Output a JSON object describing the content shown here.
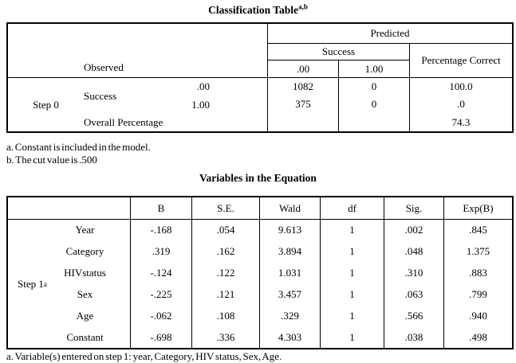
{
  "colors": {
    "text": "#000000",
    "border": "#000000",
    "background": "#ffffff"
  },
  "classification_table": {
    "title": "Classification Table",
    "title_superscript": "a,b",
    "header": {
      "observed": "Observed",
      "predicted": "Predicted",
      "success": "Success",
      "percentage_correct": "Percentage Correct",
      "col_00": ".00",
      "col_100": "1.00"
    },
    "body": {
      "step_label": "Step 0",
      "group_label": "Success",
      "row_00_label": ".00",
      "row_100_label": "1.00",
      "overall_label": "Overall Percentage",
      "row_00": {
        "pred_00": "1082",
        "pred_100": "0",
        "pct_correct": "100.0"
      },
      "row_100": {
        "pred_00": "375",
        "pred_100": "0",
        "pct_correct": ".0"
      },
      "overall": {
        "pct_correct": "74.3"
      }
    },
    "footnote_a": "a. Constant is included in the model.",
    "footnote_b": "b. The cut value is .500"
  },
  "variables_table": {
    "title": "Variables in the Equation",
    "step_label": "Step 1",
    "step_superscript": "a",
    "columns": [
      "B",
      "S.E.",
      "Wald",
      "df",
      "Sig.",
      "Exp(B)"
    ],
    "rows": [
      {
        "label": "Year",
        "values": [
          "-.168",
          ".054",
          "9.613",
          "1",
          ".002",
          ".845"
        ]
      },
      {
        "label": "Category",
        "values": [
          ".319",
          ".162",
          "3.894",
          "1",
          ".048",
          "1.375"
        ]
      },
      {
        "label": "HIVstatus",
        "values": [
          "-.124",
          ".122",
          "1.031",
          "1",
          ".310",
          ".883"
        ]
      },
      {
        "label": "Sex",
        "values": [
          "-.225",
          ".121",
          "3.457",
          "1",
          ".063",
          ".799"
        ]
      },
      {
        "label": "Age",
        "values": [
          "-.062",
          ".108",
          ".329",
          "1",
          ".566",
          ".940"
        ]
      },
      {
        "label": "Constant",
        "values": [
          "-.698",
          ".336",
          "4.303",
          "1",
          ".038",
          ".498"
        ]
      }
    ],
    "footnote_a": "a. Variable(s) entered on step 1: year, Category, HIV status, Sex, Age."
  }
}
